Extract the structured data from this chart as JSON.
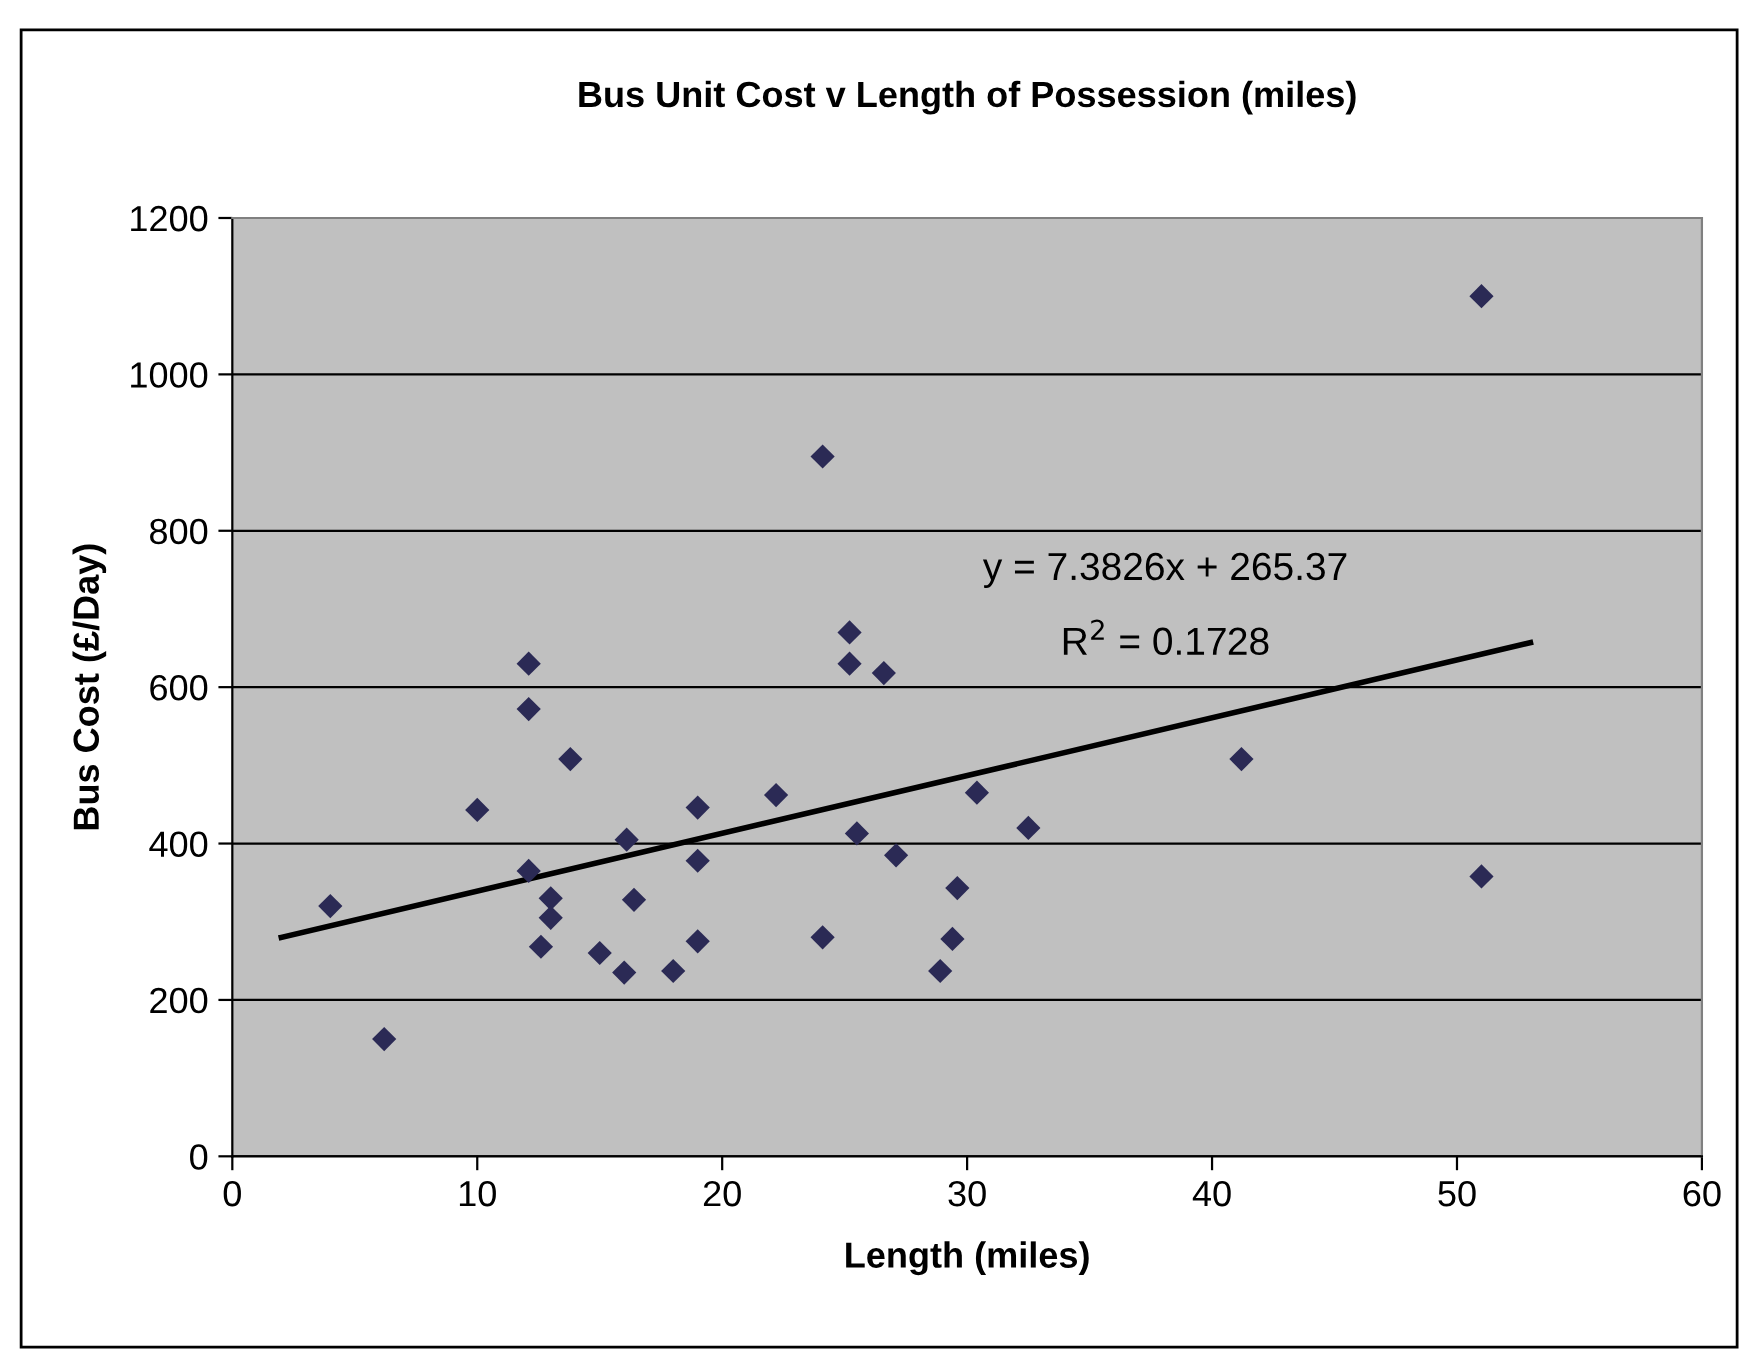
{
  "chart_data": {
    "type": "scatter",
    "title": "Bus Unit Cost v Length of Possession (miles)",
    "xlabel": "Length (miles)",
    "ylabel": "Bus Cost (£/Day)",
    "series": [
      {
        "color": "#2b2a55",
        "marker": "diamond",
        "x": [
          4,
          6.2,
          10,
          12.1,
          12.1,
          12.1,
          12.6,
          13,
          13,
          13.8,
          15,
          16,
          16.1,
          16.4,
          18,
          19,
          19,
          19,
          22.2,
          24.1,
          24.1,
          25.2,
          25.2,
          25.5,
          26.6,
          27.1,
          28.9,
          29.4,
          29.6,
          30.4,
          32.5,
          41.2,
          51,
          51
        ],
        "values": [
          320,
          150,
          443,
          630,
          572,
          365,
          268,
          330,
          305,
          508,
          260,
          235,
          405,
          328,
          237,
          446,
          378,
          275,
          462,
          895,
          280,
          670,
          630,
          413,
          618,
          385,
          237,
          278,
          343,
          465,
          420,
          508,
          1100,
          358
        ]
      },
      {
        "type": "line",
        "color": "#000000",
        "marker": "none",
        "x": [
          2,
          53
        ],
        "values": [
          280,
          657
        ]
      }
    ],
    "annotations": [
      "y = 7.3826x + 265.37",
      "R$^{2}$ = 0.1728"
    ],
    "xlim": [
      0,
      60
    ],
    "xticks": [
      0,
      10,
      20,
      30,
      40,
      50,
      60
    ],
    "ylim": [
      0,
      1200
    ],
    "yticks": [
      0,
      200,
      400,
      600,
      800,
      1000,
      1200
    ],
    "grid": "y"
  }
}
